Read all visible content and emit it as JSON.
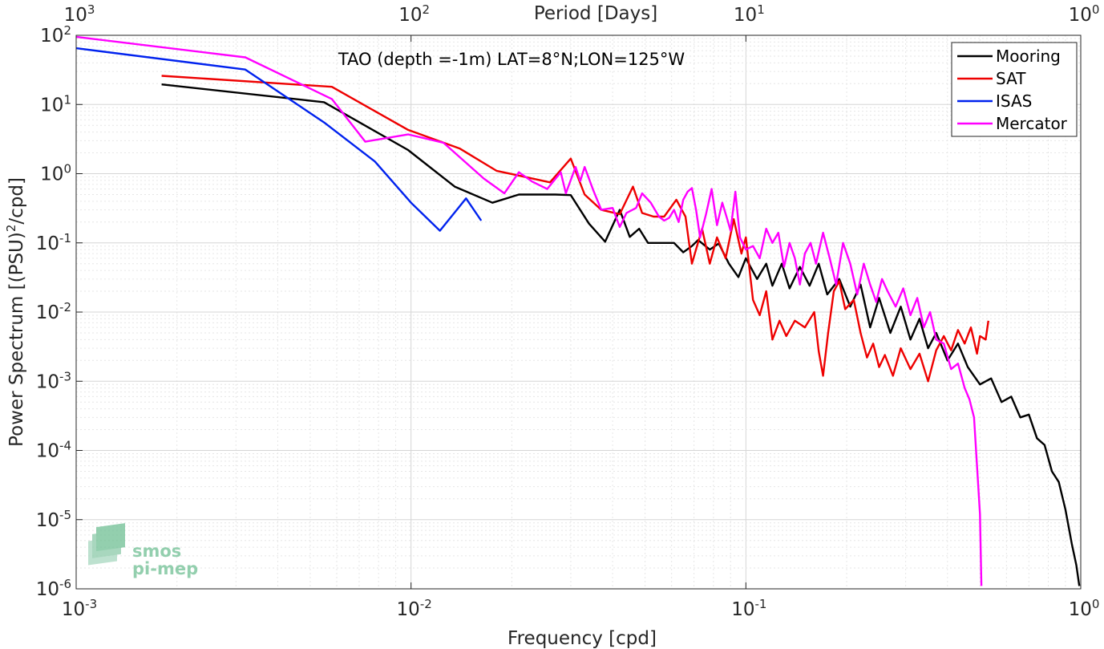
{
  "chart_data": {
    "type": "line",
    "title": "TAO (depth =-1m) LAT=8°N;LON=125°W",
    "xlabel": "Frequency [cpd]",
    "ylabel_main": "Power Spectrum [(PSU)",
    "ylabel_sup": "2",
    "ylabel_tail": "/cpd]",
    "x2label": "Period [Days]",
    "xscale": "log",
    "yscale": "log",
    "xlim": [
      0.001,
      1
    ],
    "ylim": [
      1e-06,
      100
    ],
    "grid": true,
    "legend_position": "top-right",
    "x_ticks": [
      {
        "value": 0.001,
        "base": "10",
        "exp": "-3"
      },
      {
        "value": 0.01,
        "base": "10",
        "exp": "-2"
      },
      {
        "value": 0.1,
        "base": "10",
        "exp": "-1"
      },
      {
        "value": 1,
        "base": "10",
        "exp": "0"
      }
    ],
    "top_ticks": [
      {
        "value": 0.001,
        "base": "10",
        "exp": "3"
      },
      {
        "value": 0.01,
        "base": "10",
        "exp": "2"
      },
      {
        "value": 0.1,
        "base": "10",
        "exp": "1"
      },
      {
        "value": 1,
        "base": "10",
        "exp": "0"
      }
    ],
    "y_ticks": [
      {
        "value": 100,
        "base": "10",
        "exp": "2"
      },
      {
        "value": 10,
        "base": "10",
        "exp": "1"
      },
      {
        "value": 1,
        "base": "10",
        "exp": "0"
      },
      {
        "value": 0.1,
        "base": "10",
        "exp": "-1"
      },
      {
        "value": 0.01,
        "base": "10",
        "exp": "-2"
      },
      {
        "value": 0.001,
        "base": "10",
        "exp": "-3"
      },
      {
        "value": 0.0001,
        "base": "10",
        "exp": "-4"
      },
      {
        "value": 1e-05,
        "base": "10",
        "exp": "-5"
      },
      {
        "value": 1e-06,
        "base": "10",
        "exp": "-6"
      }
    ],
    "series": [
      {
        "name": "Mooring",
        "color": "#000000",
        "points": [
          [
            0.0018,
            19.5
          ],
          [
            0.0055,
            10.8
          ],
          [
            0.0098,
            2.2
          ],
          [
            0.0135,
            0.65
          ],
          [
            0.0175,
            0.38
          ],
          [
            0.021,
            0.5
          ],
          [
            0.027,
            0.5
          ],
          [
            0.03,
            0.49
          ],
          [
            0.034,
            0.19
          ],
          [
            0.038,
            0.104
          ],
          [
            0.042,
            0.3
          ],
          [
            0.045,
            0.122
          ],
          [
            0.048,
            0.16
          ],
          [
            0.051,
            0.1
          ],
          [
            0.056,
            0.1
          ],
          [
            0.061,
            0.1
          ],
          [
            0.065,
            0.073
          ],
          [
            0.069,
            0.09
          ],
          [
            0.072,
            0.11
          ],
          [
            0.078,
            0.08
          ],
          [
            0.083,
            0.098
          ],
          [
            0.089,
            0.05
          ],
          [
            0.095,
            0.032
          ],
          [
            0.1,
            0.06
          ],
          [
            0.108,
            0.03
          ],
          [
            0.115,
            0.05
          ],
          [
            0.12,
            0.024
          ],
          [
            0.128,
            0.05
          ],
          [
            0.135,
            0.022
          ],
          [
            0.145,
            0.045
          ],
          [
            0.155,
            0.024
          ],
          [
            0.165,
            0.05
          ],
          [
            0.175,
            0.018
          ],
          [
            0.19,
            0.03
          ],
          [
            0.205,
            0.012
          ],
          [
            0.22,
            0.025
          ],
          [
            0.235,
            0.006
          ],
          [
            0.25,
            0.016
          ],
          [
            0.27,
            0.005
          ],
          [
            0.29,
            0.012
          ],
          [
            0.31,
            0.004
          ],
          [
            0.33,
            0.008
          ],
          [
            0.35,
            0.003
          ],
          [
            0.37,
            0.005
          ],
          [
            0.4,
            0.002
          ],
          [
            0.43,
            0.0035
          ],
          [
            0.46,
            0.0016
          ],
          [
            0.5,
            0.0009
          ],
          [
            0.54,
            0.0011
          ],
          [
            0.58,
            0.0005
          ],
          [
            0.62,
            0.0006
          ],
          [
            0.66,
            0.0003
          ],
          [
            0.7,
            0.00033
          ],
          [
            0.74,
            0.00015
          ],
          [
            0.78,
            0.00012
          ],
          [
            0.82,
            5e-05
          ],
          [
            0.86,
            3.5e-05
          ],
          [
            0.9,
            1.4e-05
          ],
          [
            0.94,
            4.5e-06
          ],
          [
            0.97,
            2.2e-06
          ],
          [
            0.99,
            1.1e-06
          ]
        ]
      },
      {
        "name": "SAT",
        "color": "#ee0000",
        "points": [
          [
            0.0018,
            26
          ],
          [
            0.0058,
            18
          ],
          [
            0.0098,
            4.3
          ],
          [
            0.014,
            2.3
          ],
          [
            0.018,
            1.1
          ],
          [
            0.026,
            0.75
          ],
          [
            0.03,
            1.65
          ],
          [
            0.033,
            0.5
          ],
          [
            0.037,
            0.3
          ],
          [
            0.042,
            0.26
          ],
          [
            0.046,
            0.65
          ],
          [
            0.049,
            0.27
          ],
          [
            0.053,
            0.24
          ],
          [
            0.057,
            0.24
          ],
          [
            0.062,
            0.42
          ],
          [
            0.066,
            0.24
          ],
          [
            0.069,
            0.05
          ],
          [
            0.074,
            0.16
          ],
          [
            0.078,
            0.05
          ],
          [
            0.082,
            0.12
          ],
          [
            0.087,
            0.06
          ],
          [
            0.092,
            0.22
          ],
          [
            0.097,
            0.07
          ],
          [
            0.1,
            0.12
          ],
          [
            0.105,
            0.015
          ],
          [
            0.11,
            0.009
          ],
          [
            0.115,
            0.02
          ],
          [
            0.12,
            0.004
          ],
          [
            0.126,
            0.0075
          ],
          [
            0.132,
            0.0045
          ],
          [
            0.14,
            0.0075
          ],
          [
            0.15,
            0.006
          ],
          [
            0.16,
            0.01
          ],
          [
            0.165,
            0.0027
          ],
          [
            0.17,
            0.0012
          ],
          [
            0.176,
            0.005
          ],
          [
            0.183,
            0.02
          ],
          [
            0.19,
            0.028
          ],
          [
            0.198,
            0.011
          ],
          [
            0.21,
            0.015
          ],
          [
            0.22,
            0.005
          ],
          [
            0.23,
            0.0022
          ],
          [
            0.24,
            0.0035
          ],
          [
            0.25,
            0.0016
          ],
          [
            0.26,
            0.0024
          ],
          [
            0.275,
            0.0012
          ],
          [
            0.29,
            0.003
          ],
          [
            0.31,
            0.0015
          ],
          [
            0.33,
            0.0025
          ],
          [
            0.35,
            0.001
          ],
          [
            0.37,
            0.0028
          ],
          [
            0.39,
            0.0045
          ],
          [
            0.41,
            0.0028
          ],
          [
            0.43,
            0.0055
          ],
          [
            0.45,
            0.0035
          ],
          [
            0.47,
            0.006
          ],
          [
            0.49,
            0.0025
          ],
          [
            0.5,
            0.0045
          ],
          [
            0.52,
            0.004
          ],
          [
            0.53,
            0.0075
          ]
        ]
      },
      {
        "name": "ISAS",
        "color": "#0022ee",
        "points": [
          [
            0.001,
            65
          ],
          [
            0.0032,
            32
          ],
          [
            0.0055,
            5.5
          ],
          [
            0.0078,
            1.5
          ],
          [
            0.01,
            0.38
          ],
          [
            0.0122,
            0.15
          ],
          [
            0.0146,
            0.44
          ],
          [
            0.0162,
            0.21
          ]
        ]
      },
      {
        "name": "Mercator",
        "color": "#ff00ff",
        "points": [
          [
            0.001,
            95
          ],
          [
            0.0032,
            48
          ],
          [
            0.0058,
            12
          ],
          [
            0.0073,
            2.9
          ],
          [
            0.0098,
            3.7
          ],
          [
            0.0125,
            2.8
          ],
          [
            0.0165,
            0.85
          ],
          [
            0.019,
            0.52
          ],
          [
            0.021,
            1.05
          ],
          [
            0.023,
            0.77
          ],
          [
            0.0255,
            0.6
          ],
          [
            0.028,
            1.05
          ],
          [
            0.029,
            0.52
          ],
          [
            0.031,
            1.25
          ],
          [
            0.032,
            0.78
          ],
          [
            0.033,
            1.25
          ],
          [
            0.035,
            0.58
          ],
          [
            0.037,
            0.3
          ],
          [
            0.04,
            0.32
          ],
          [
            0.042,
            0.17
          ],
          [
            0.044,
            0.27
          ],
          [
            0.047,
            0.32
          ],
          [
            0.049,
            0.52
          ],
          [
            0.052,
            0.38
          ],
          [
            0.055,
            0.24
          ],
          [
            0.057,
            0.21
          ],
          [
            0.059,
            0.23
          ],
          [
            0.061,
            0.3
          ],
          [
            0.063,
            0.2
          ],
          [
            0.065,
            0.42
          ],
          [
            0.067,
            0.55
          ],
          [
            0.069,
            0.62
          ],
          [
            0.071,
            0.3
          ],
          [
            0.073,
            0.12
          ],
          [
            0.076,
            0.26
          ],
          [
            0.079,
            0.6
          ],
          [
            0.082,
            0.18
          ],
          [
            0.085,
            0.38
          ],
          [
            0.088,
            0.22
          ],
          [
            0.09,
            0.15
          ],
          [
            0.093,
            0.55
          ],
          [
            0.096,
            0.12
          ],
          [
            0.1,
            0.08
          ],
          [
            0.105,
            0.09
          ],
          [
            0.11,
            0.06
          ],
          [
            0.115,
            0.16
          ],
          [
            0.12,
            0.1
          ],
          [
            0.125,
            0.14
          ],
          [
            0.13,
            0.045
          ],
          [
            0.135,
            0.1
          ],
          [
            0.14,
            0.06
          ],
          [
            0.145,
            0.025
          ],
          [
            0.15,
            0.07
          ],
          [
            0.156,
            0.1
          ],
          [
            0.162,
            0.05
          ],
          [
            0.17,
            0.14
          ],
          [
            0.178,
            0.06
          ],
          [
            0.186,
            0.025
          ],
          [
            0.195,
            0.1
          ],
          [
            0.205,
            0.05
          ],
          [
            0.215,
            0.018
          ],
          [
            0.225,
            0.05
          ],
          [
            0.235,
            0.025
          ],
          [
            0.245,
            0.014
          ],
          [
            0.255,
            0.03
          ],
          [
            0.265,
            0.02
          ],
          [
            0.28,
            0.012
          ],
          [
            0.295,
            0.022
          ],
          [
            0.31,
            0.009
          ],
          [
            0.325,
            0.016
          ],
          [
            0.34,
            0.006
          ],
          [
            0.355,
            0.01
          ],
          [
            0.37,
            0.004
          ],
          [
            0.39,
            0.0035
          ],
          [
            0.41,
            0.0015
          ],
          [
            0.43,
            0.0018
          ],
          [
            0.45,
            0.0008
          ],
          [
            0.465,
            0.00055
          ],
          [
            0.48,
            0.0003
          ],
          [
            0.49,
            6e-05
          ],
          [
            0.5,
            1.2e-05
          ],
          [
            0.505,
            1.1e-06
          ]
        ]
      }
    ]
  },
  "watermark": {
    "line1": "smos",
    "line2": "pi-mep"
  }
}
